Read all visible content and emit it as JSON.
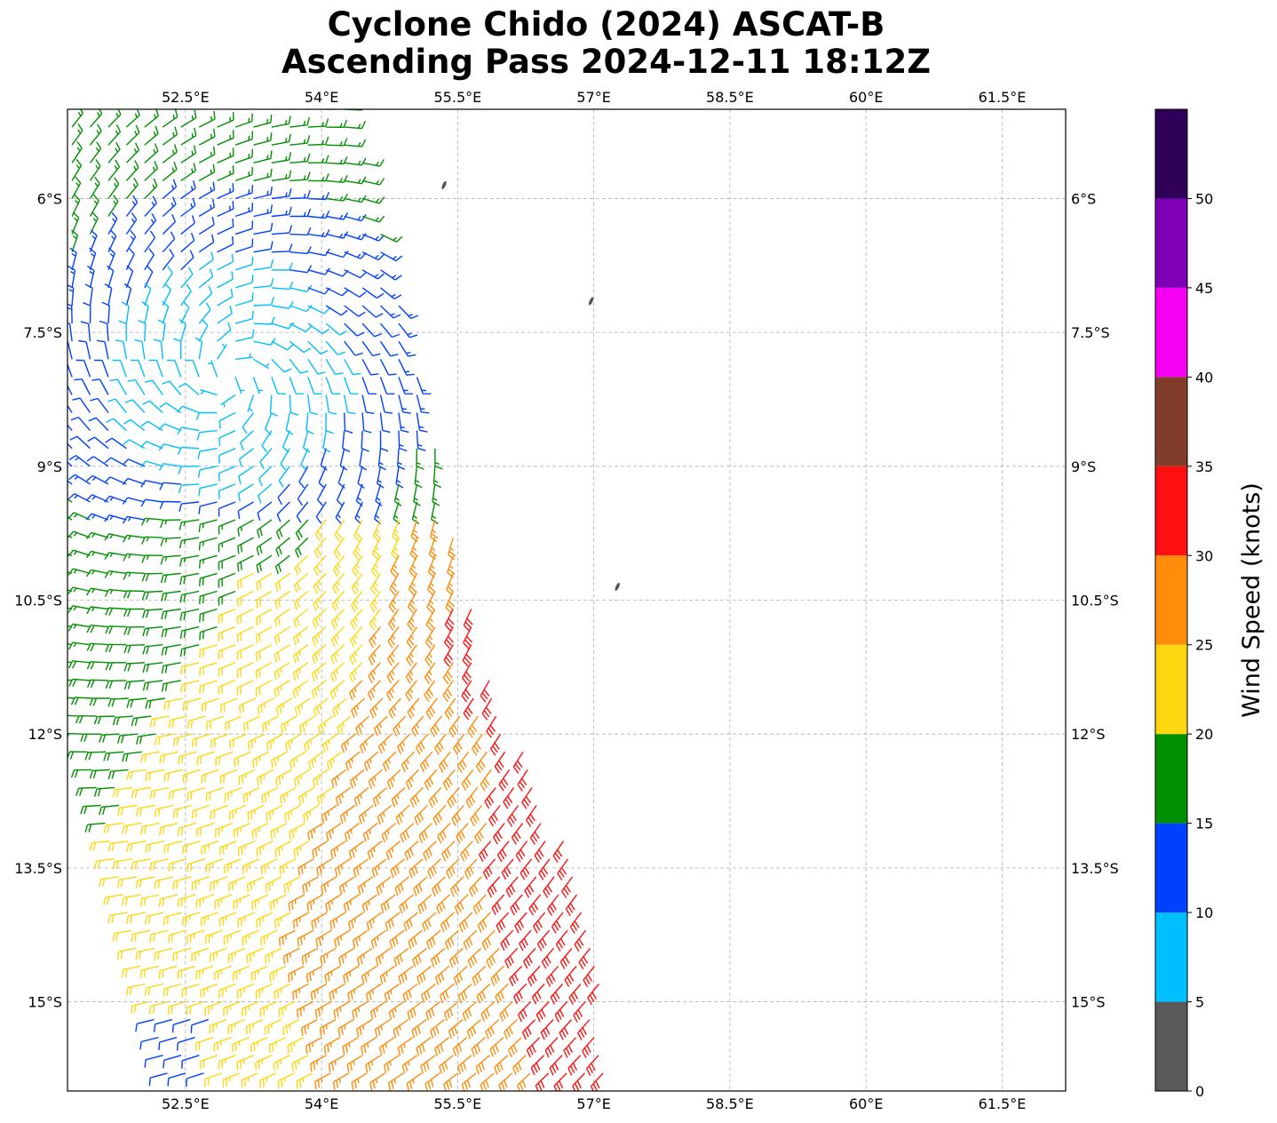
{
  "title": {
    "line1": "Cyclone Chido (2024) ASCAT-B",
    "line2": "Ascending Pass 2024-12-11 18:12Z"
  },
  "map": {
    "lon_range": [
      51.2,
      62.2
    ],
    "lat_range": [
      -16.0,
      -5.0
    ],
    "lon_ticks": [
      52.5,
      54,
      55.5,
      57,
      58.5,
      60,
      61.5
    ],
    "lon_tick_labels": [
      "52.5°E",
      "54°E",
      "55.5°E",
      "57°E",
      "58.5°E",
      "60°E",
      "61.5°E"
    ],
    "lat_ticks": [
      -6,
      -7.5,
      -9,
      -10.5,
      -12,
      -13.5,
      -15
    ],
    "lat_tick_labels": [
      "6°S",
      "7.5°S",
      "9°S",
      "10.5°S",
      "12°S",
      "13.5°S",
      "15°S"
    ],
    "gridlines": true,
    "land_color": "#555555",
    "islands": [
      {
        "name": "islet-a",
        "lon": 55.35,
        "lat": -5.85
      },
      {
        "name": "islet-b",
        "lon": 56.97,
        "lat": -7.15
      },
      {
        "name": "islet-c",
        "lon": 57.26,
        "lat": -10.35
      }
    ]
  },
  "colorbar": {
    "label": "Wind Speed (knots)",
    "bounds": [
      0,
      5,
      10,
      15,
      20,
      25,
      30,
      35,
      40,
      45,
      50,
      55
    ],
    "tick_values": [
      0,
      5,
      10,
      15,
      20,
      25,
      30,
      35,
      40,
      45,
      50
    ],
    "tick_labels": [
      "0",
      "5",
      "10",
      "15",
      "20",
      "25",
      "30",
      "35",
      "40",
      "45",
      "50"
    ],
    "colors": [
      "#595959",
      "#00bfff",
      "#0040ff",
      "#009000",
      "#ffd710",
      "#ff8c0a",
      "#ff1010",
      "#7f3d2a",
      "#f500f0",
      "#8000b8",
      "#2e0058"
    ]
  },
  "chart_data": {
    "type": "wind-barb-map",
    "product": "ASCAT-B scatterometer ocean surface winds",
    "storm_center_approx": {
      "lon": 53.0,
      "lat": -8.0
    },
    "swath_west_edge": [
      {
        "lat": -5.0,
        "lon": 51.2
      },
      {
        "lat": -11.5,
        "lon": 51.2
      },
      {
        "lat": -16.0,
        "lon": 52.3
      }
    ],
    "swath_east_edge": [
      {
        "lat": -5.0,
        "lon": 54.3
      },
      {
        "lat": -8.5,
        "lon": 55.2
      },
      {
        "lat": -11.2,
        "lon": 55.8
      },
      {
        "lat": -13.5,
        "lon": 56.8
      },
      {
        "lat": -16.0,
        "lon": 57.3
      }
    ],
    "wind_regions_knots": [
      {
        "area": "storm core near 8°S 53°E",
        "speed_range": [
          5,
          10
        ]
      },
      {
        "area": "ring around core",
        "speed_range": [
          10,
          15
        ]
      },
      {
        "area": "west and south of swath",
        "speed_range": [
          15,
          20
        ]
      },
      {
        "area": "east-central swath 10–16°S",
        "speed_range": [
          20,
          25
        ]
      },
      {
        "area": "eastern swath edge 10.5–13°S",
        "speed_range": [
          25,
          30
        ]
      },
      {
        "area": "eastern swath edge near 11°S 55.7°E",
        "speed_range": [
          30,
          35
        ]
      },
      {
        "area": "southwestern corner near 15.5°S 52.5°E",
        "speed_range": [
          10,
          15
        ]
      }
    ]
  }
}
